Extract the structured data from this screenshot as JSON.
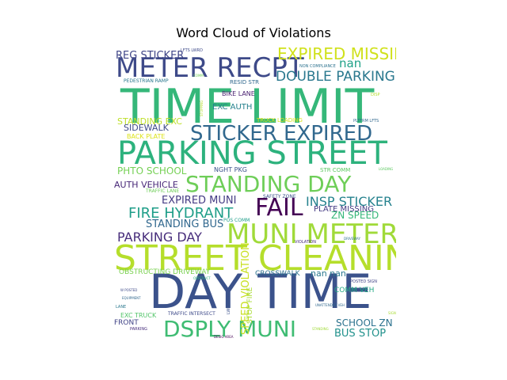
{
  "chart_data": {
    "type": "wordcloud",
    "title": "Word Cloud of Violations",
    "background": "#ffffff",
    "colormap": "viridis",
    "words": [
      {
        "text": "DAY TIME",
        "weight": 1.0,
        "color": "#3b528b"
      },
      {
        "text": "TIME LIMIT",
        "weight": 0.95,
        "color": "#35b779"
      },
      {
        "text": "STREET CLEANING",
        "weight": 0.85,
        "color": "#b5de2b"
      },
      {
        "text": "PARKING STREET",
        "weight": 0.78,
        "color": "#2db27d"
      },
      {
        "text": "MUNI METER",
        "weight": 0.7,
        "color": "#a0da39"
      },
      {
        "text": "STANDING DAY",
        "weight": 0.65,
        "color": "#6ece58"
      },
      {
        "text": "STICKER EXPIRED",
        "weight": 0.6,
        "color": "#31688e"
      },
      {
        "text": "METER RECPT",
        "weight": 0.58,
        "color": "#3e4a89"
      },
      {
        "text": "DSPLY MUNI",
        "weight": 0.55,
        "color": "#3fbc73"
      },
      {
        "text": "FAIL",
        "weight": 0.52,
        "color": "#440154"
      },
      {
        "text": "EXPIRED MISSING",
        "weight": 0.45,
        "color": "#d0e11c"
      },
      {
        "text": "FIRE HYDRANT",
        "weight": 0.38,
        "color": "#1f9e89"
      },
      {
        "text": "DOUBLE PARKING",
        "weight": 0.34,
        "color": "#2a788e"
      },
      {
        "text": "PARKING DAY",
        "weight": 0.3,
        "color": "#472d7b"
      },
      {
        "text": "INSP STICKER",
        "weight": 0.28,
        "color": "#26828e"
      },
      {
        "text": "nan",
        "weight": 0.26,
        "color": "#1fa187"
      },
      {
        "text": "SPEED VIOLATION",
        "weight": 0.25,
        "color": "#c8e020"
      },
      {
        "text": "EXPIRED MUNI",
        "weight": 0.24,
        "color": "#443a83"
      },
      {
        "text": "STANDING BUS",
        "weight": 0.23,
        "color": "#31688e"
      },
      {
        "text": "REG STICKER",
        "weight": 0.22,
        "color": "#404688"
      },
      {
        "text": "BUS STOP",
        "weight": 0.21,
        "color": "#21918c"
      },
      {
        "text": "ZN SPEED",
        "weight": 0.2,
        "color": "#35b779"
      },
      {
        "text": "SCHOOL ZN",
        "weight": 0.19,
        "color": "#2c728e"
      },
      {
        "text": "PHTO SCHOOL",
        "weight": 0.18,
        "color": "#75d054"
      },
      {
        "text": "SIDEWALK",
        "weight": 0.17,
        "color": "#3e4a89"
      },
      {
        "text": "AUTH VEHICLE",
        "weight": 0.16,
        "color": "#482878"
      },
      {
        "text": "STANDING EXC",
        "weight": 0.16,
        "color": "#bddf26"
      },
      {
        "text": "nan nan",
        "weight": 0.15,
        "color": "#2a788e"
      },
      {
        "text": "PLATE MISSING",
        "weight": 0.14,
        "color": "#443a83"
      },
      {
        "text": "EXC AUTH",
        "weight": 0.13,
        "color": "#26828e"
      },
      {
        "text": "COMM VEH",
        "weight": 0.12,
        "color": "#22a884"
      },
      {
        "text": "FRONT",
        "weight": 0.12,
        "color": "#414487"
      },
      {
        "text": "OBSTRUCTING DRIVEWAY",
        "weight": 0.11,
        "color": "#7ad151"
      },
      {
        "text": "CROSSWALK",
        "weight": 0.11,
        "color": "#2c728e"
      },
      {
        "text": "STOP FIRE",
        "weight": 0.1,
        "color": "#a8db34"
      },
      {
        "text": "EXC TRUCK",
        "weight": 0.1,
        "color": "#52c569"
      },
      {
        "text": "BACK PLATE",
        "weight": 0.1,
        "color": "#dde318"
      },
      {
        "text": "NGHT PKG",
        "weight": 0.1,
        "color": "#3b528b"
      },
      {
        "text": "BIKE LANE",
        "weight": 0.09,
        "color": "#481f70"
      },
      {
        "text": "RESID STR",
        "weight": 0.09,
        "color": "#31688e"
      },
      {
        "text": "STR COMM",
        "weight": 0.08,
        "color": "#5ec962"
      },
      {
        "text": "TRUCK LOADING",
        "weight": 0.08,
        "color": "#d8e219"
      },
      {
        "text": "TRAFFIC LANE",
        "weight": 0.07,
        "color": "#6ece58"
      },
      {
        "text": "SAFETY ZONE",
        "weight": 0.07,
        "color": "#3b528b"
      },
      {
        "text": "POS COMM",
        "weight": 0.06,
        "color": "#1f9e89"
      },
      {
        "text": "PEDESTRIAN RAMP",
        "weight": 0.06,
        "color": "#2a788e"
      },
      {
        "text": "TRAFFIC INTERSECT",
        "weight": 0.06,
        "color": "#3e4a89"
      },
      {
        "text": "VIOLATION",
        "weight": 0.06,
        "color": "#472d7b"
      },
      {
        "text": "LFTS LWRD",
        "weight": 0.05,
        "color": "#3e4a89"
      },
      {
        "text": "NON COMPLIANCE",
        "weight": 0.05,
        "color": "#2c728e"
      },
      {
        "text": "PLTFRM LFTS",
        "weight": 0.05,
        "color": "#31688e"
      },
      {
        "text": "DISP",
        "weight": 0.05,
        "color": "#b5de2b"
      },
      {
        "text": "POSTED SIGN",
        "weight": 0.05,
        "color": "#414487"
      },
      {
        "text": "LANE",
        "weight": 0.05,
        "color": "#2a788e"
      },
      {
        "text": "PARKING",
        "weight": 0.05,
        "color": "#472d7b"
      },
      {
        "text": "LWRD POS",
        "weight": 0.04,
        "color": "#3b528b"
      },
      {
        "text": "DESIG AREA",
        "weight": 0.04,
        "color": "#440154"
      },
      {
        "text": "STANDING",
        "weight": 0.04,
        "color": "#a0da39"
      },
      {
        "text": "W POSTED",
        "weight": 0.04,
        "color": "#3e4a89"
      },
      {
        "text": "COMM",
        "weight": 0.04,
        "color": "#6ece58"
      },
      {
        "text": "STOPPING",
        "weight": 0.04,
        "color": "#b5de2b"
      },
      {
        "text": "OBSTRUCT",
        "weight": 0.04,
        "color": "#2db27d"
      },
      {
        "text": "DRIVEWAY",
        "weight": 0.04,
        "color": "#2c728e"
      },
      {
        "text": "LOADING",
        "weight": 0.04,
        "color": "#5ec962"
      },
      {
        "text": "UNATTENDED VEH",
        "weight": 0.04,
        "color": "#31688e"
      },
      {
        "text": "EQUIPMENT",
        "weight": 0.04,
        "color": "#31688e"
      },
      {
        "text": "SIGN",
        "weight": 0.04,
        "color": "#a8db34"
      },
      {
        "text": "PARK",
        "weight": 0.04,
        "color": "#35b779"
      }
    ]
  }
}
